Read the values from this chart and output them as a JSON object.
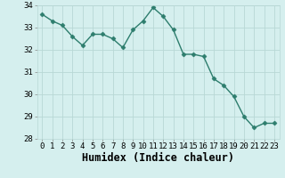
{
  "x": [
    0,
    1,
    2,
    3,
    4,
    5,
    6,
    7,
    8,
    9,
    10,
    11,
    12,
    13,
    14,
    15,
    16,
    17,
    18,
    19,
    20,
    21,
    22,
    23
  ],
  "y": [
    33.6,
    33.3,
    33.1,
    32.6,
    32.2,
    32.7,
    32.7,
    32.5,
    32.1,
    32.9,
    33.3,
    33.9,
    33.5,
    32.9,
    31.8,
    31.8,
    31.7,
    30.7,
    30.4,
    29.9,
    29.0,
    28.5,
    28.7,
    28.7
  ],
  "xlabel": "Humidex (Indice chaleur)",
  "ylim": [
    28,
    34
  ],
  "xlim_min": -0.5,
  "xlim_max": 23.5,
  "yticks": [
    28,
    29,
    30,
    31,
    32,
    33,
    34
  ],
  "xticks": [
    0,
    1,
    2,
    3,
    4,
    5,
    6,
    7,
    8,
    9,
    10,
    11,
    12,
    13,
    14,
    15,
    16,
    17,
    18,
    19,
    20,
    21,
    22,
    23
  ],
  "line_color": "#2d7d6d",
  "marker": "D",
  "marker_size": 2.5,
  "bg_color": "#d5efee",
  "grid_color": "#b8d8d5",
  "tick_label_fontsize": 6.5,
  "xlabel_fontsize": 8.5,
  "linewidth": 1.0
}
